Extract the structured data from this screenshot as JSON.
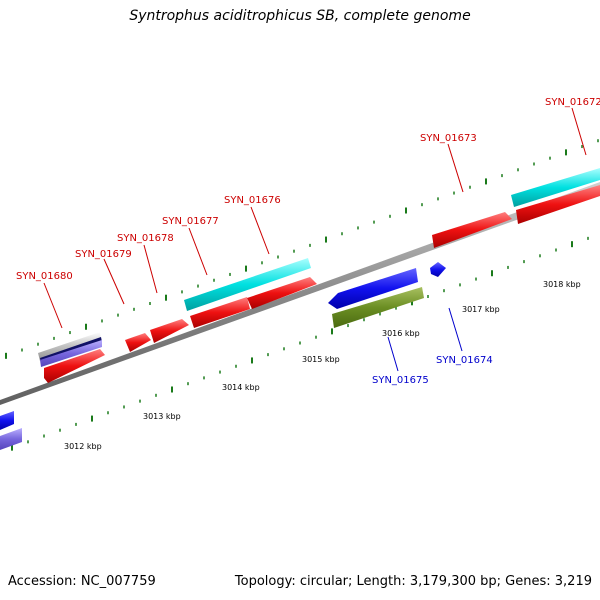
{
  "title": "Syntrophus aciditrophicus SB, complete genome",
  "footer": {
    "accession": "Accession: NC_007759",
    "summary": "Topology: circular; Length: 3,179,300 bp; Genes: 3,219"
  },
  "colors": {
    "backbone": "#8a8a8a",
    "tick": "#1a7a1a",
    "red_gene": "#ee1111",
    "cyan_gene": "#00dddd",
    "blue_gene": "#1111ee",
    "olive_gene": "#6b8e23",
    "lavender_gene": "#7766dd",
    "gray_gene": "#b5b5b5",
    "navy_gene": "#111166",
    "label_red": "#cc0000",
    "label_blue": "#0000cc"
  },
  "kbp_labels": [
    "3012 kbp",
    "3013 kbp",
    "3014 kbp",
    "3015 kbp",
    "3016 kbp",
    "3017 kbp",
    "3018 kbp"
  ],
  "gene_labels": [
    {
      "text": "SYN_01680",
      "color": "red"
    },
    {
      "text": "SYN_01679",
      "color": "red"
    },
    {
      "text": "SYN_01678",
      "color": "red"
    },
    {
      "text": "SYN_01677",
      "color": "red"
    },
    {
      "text": "SYN_01676",
      "color": "red"
    },
    {
      "text": "SYN_01673",
      "color": "red"
    },
    {
      "text": "SYN_01672",
      "color": "red"
    },
    {
      "text": "SYN_01675",
      "color": "blue"
    },
    {
      "text": "SYN_01674",
      "color": "blue"
    }
  ]
}
